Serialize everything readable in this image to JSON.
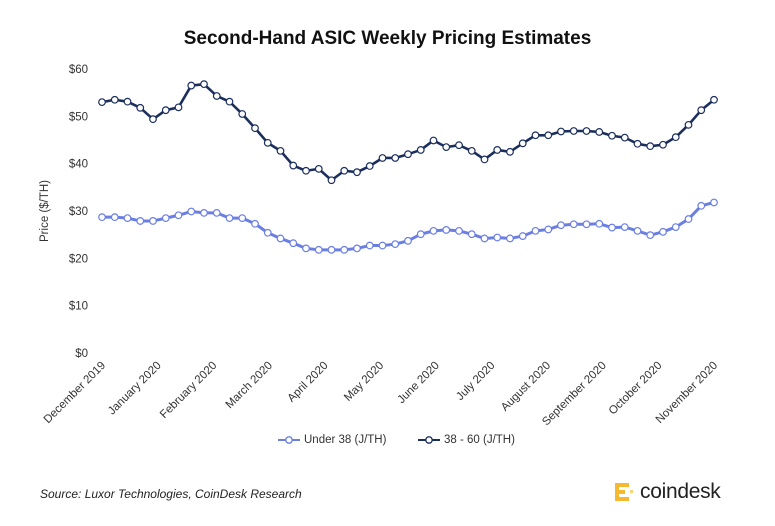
{
  "chart_data": {
    "type": "line",
    "title": "Second-Hand ASIC Weekly Pricing Estimates",
    "ylabel": "Price ($/TH)",
    "xlabel": "",
    "ylim": [
      0,
      60
    ],
    "yticks": [
      "$0",
      "$10",
      "$20",
      "$30",
      "$40",
      "$50",
      "$60"
    ],
    "ytick_values": [
      0,
      10,
      20,
      30,
      40,
      50,
      60
    ],
    "x_tick_labels": [
      "December 2019",
      "January 2020",
      "February 2020",
      "March 2020",
      "April 2020",
      "May 2020",
      "June 2020",
      "July 2020",
      "August 2020",
      "September 2020",
      "October 2020",
      "November 2020"
    ],
    "grid": false,
    "legend_position": "bottom",
    "series": [
      {
        "name": "Under 38 (J/TH)",
        "color": "#6b7fe3",
        "values": [
          28.7,
          28.7,
          28.5,
          27.9,
          27.9,
          28.5,
          29.1,
          29.9,
          29.6,
          29.6,
          28.5,
          28.5,
          27.3,
          25.4,
          24.2,
          23.2,
          22.1,
          21.8,
          21.8,
          21.8,
          22.1,
          22.7,
          22.7,
          23.0,
          23.7,
          25.1,
          25.8,
          26.0,
          25.8,
          25.1,
          24.2,
          24.4,
          24.2,
          24.7,
          25.8,
          26.1,
          27.0,
          27.2,
          27.2,
          27.3,
          26.5,
          26.6,
          25.8,
          24.9,
          25.6,
          26.6,
          28.3,
          31.1,
          31.8
        ]
      },
      {
        "name": "38 - 60 (J/TH)",
        "color": "#1c2f5c",
        "values": [
          53.0,
          53.5,
          53.1,
          51.8,
          49.4,
          51.3,
          51.9,
          56.5,
          56.8,
          54.3,
          53.1,
          50.5,
          47.5,
          44.4,
          42.7,
          39.6,
          38.5,
          38.9,
          36.5,
          38.5,
          38.2,
          39.5,
          41.2,
          41.2,
          42.0,
          42.9,
          44.9,
          43.5,
          43.9,
          42.7,
          40.9,
          42.9,
          42.5,
          44.3,
          46.0,
          46.0,
          46.8,
          46.9,
          46.9,
          46.7,
          45.9,
          45.5,
          44.2,
          43.7,
          44.0,
          45.6,
          48.2,
          51.3,
          53.5
        ]
      }
    ]
  },
  "footer": {
    "source": "Source: Luxor Technologies, CoinDesk Research",
    "logo_text": "coindesk"
  }
}
